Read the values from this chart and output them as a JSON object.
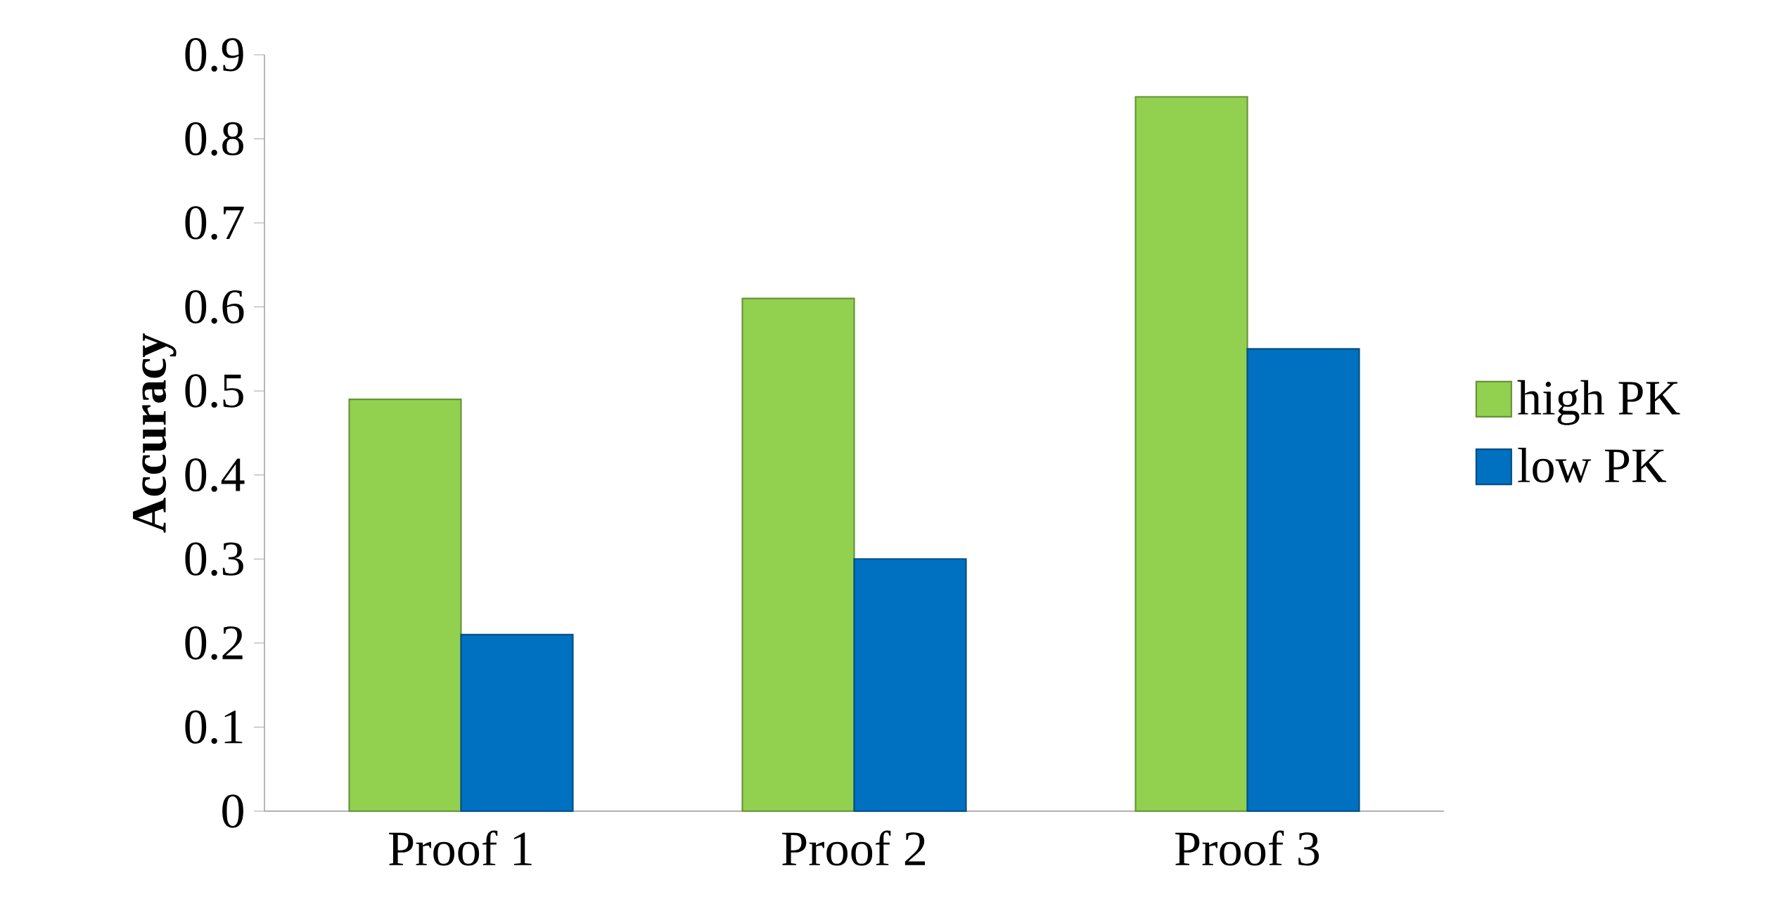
{
  "chart_data": {
    "type": "bar",
    "ylabel": "Accuracy",
    "categories": [
      "Proof 1",
      "Proof 2",
      "Proof 3"
    ],
    "series": [
      {
        "name": "high PK",
        "color": "#92d050",
        "values": [
          0.49,
          0.61,
          0.85
        ]
      },
      {
        "name": "low PK",
        "color": "#0070c0",
        "values": [
          0.21,
          0.3,
          0.55
        ]
      }
    ],
    "ylim": [
      0,
      0.9
    ],
    "yticks": [
      0,
      0.1,
      0.2,
      0.3,
      0.4,
      0.5,
      0.6,
      0.7,
      0.8,
      0.9
    ],
    "grid": false,
    "legend": "right"
  }
}
